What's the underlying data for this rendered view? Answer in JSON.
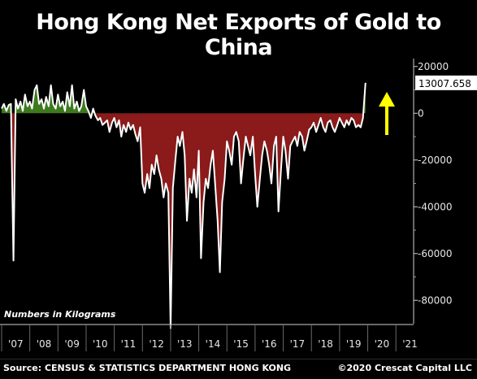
{
  "chart_data": {
    "type": "area",
    "title": "Hong Kong Net Exports of Gold to China",
    "note": "Numbers in Kilograms",
    "source": "Source: CENSUS & STATISTICS DEPARTMENT HONG KONG",
    "copyright": "©2020 Crescat Capital LLC",
    "last_value_label": "13007.658",
    "x_tick_labels": [
      "'07",
      "'08",
      "'09",
      "'10",
      "'11",
      "'12",
      "'13",
      "'14",
      "'15",
      "'16",
      "'17",
      "'18",
      "'19",
      "'20",
      "'21"
    ],
    "y_tick_labels": [
      "20000",
      "0",
      "-20000",
      "-40000",
      "-60000",
      "-80000"
    ],
    "yticks": [
      20000,
      0,
      -20000,
      -40000,
      -60000,
      -80000
    ],
    "ylim": [
      -90000,
      22000
    ],
    "xlim": [
      2007.0,
      2021.6
    ],
    "grid": false,
    "colors": {
      "positive_fill": "#3d7a1e",
      "negative_fill": "#8b1a1a",
      "line": "#ffffff",
      "arrow": "#ffff00",
      "background": "#000000"
    },
    "series": [
      {
        "values": [
          [
            2007.0,
            2000
          ],
          [
            2007.08,
            4000
          ],
          [
            2007.17,
            1000
          ],
          [
            2007.25,
            3500
          ],
          [
            2007.33,
            4000
          ],
          [
            2007.42,
            -63000
          ],
          [
            2007.5,
            6000
          ],
          [
            2007.58,
            2000
          ],
          [
            2007.67,
            5000
          ],
          [
            2007.75,
            1000
          ],
          [
            2007.83,
            8000
          ],
          [
            2007.92,
            3000
          ],
          [
            2008.0,
            5000
          ],
          [
            2008.08,
            2000
          ],
          [
            2008.17,
            10000
          ],
          [
            2008.25,
            12000
          ],
          [
            2008.33,
            4000
          ],
          [
            2008.42,
            6000
          ],
          [
            2008.5,
            2000
          ],
          [
            2008.58,
            7000
          ],
          [
            2008.67,
            3000
          ],
          [
            2008.75,
            12000
          ],
          [
            2008.83,
            4000
          ],
          [
            2008.92,
            2000
          ],
          [
            2009.0,
            8000
          ],
          [
            2009.08,
            3000
          ],
          [
            2009.17,
            5000
          ],
          [
            2009.25,
            1000
          ],
          [
            2009.33,
            9000
          ],
          [
            2009.42,
            3000
          ],
          [
            2009.5,
            12000
          ],
          [
            2009.58,
            2000
          ],
          [
            2009.67,
            5000
          ],
          [
            2009.75,
            1000
          ],
          [
            2009.83,
            3000
          ],
          [
            2009.92,
            10000
          ],
          [
            2010.0,
            3000
          ],
          [
            2010.08,
            1000
          ],
          [
            2010.17,
            -2000
          ],
          [
            2010.25,
            2000
          ],
          [
            2010.33,
            -1000
          ],
          [
            2010.42,
            -3000
          ],
          [
            2010.5,
            -2000
          ],
          [
            2010.58,
            -5000
          ],
          [
            2010.67,
            -4000
          ],
          [
            2010.75,
            -3000
          ],
          [
            2010.83,
            -8000
          ],
          [
            2010.92,
            -4000
          ],
          [
            2011.0,
            -2000
          ],
          [
            2011.08,
            -6000
          ],
          [
            2011.17,
            -3000
          ],
          [
            2011.25,
            -10000
          ],
          [
            2011.33,
            -5000
          ],
          [
            2011.42,
            -8000
          ],
          [
            2011.5,
            -4000
          ],
          [
            2011.58,
            -7000
          ],
          [
            2011.67,
            -5000
          ],
          [
            2011.75,
            -9000
          ],
          [
            2011.83,
            -12000
          ],
          [
            2011.92,
            -6000
          ],
          [
            2012.0,
            -30000
          ],
          [
            2012.08,
            -34000
          ],
          [
            2012.17,
            -26000
          ],
          [
            2012.25,
            -32000
          ],
          [
            2012.33,
            -22000
          ],
          [
            2012.42,
            -26000
          ],
          [
            2012.5,
            -18000
          ],
          [
            2012.58,
            -24000
          ],
          [
            2012.67,
            -28000
          ],
          [
            2012.75,
            -36000
          ],
          [
            2012.83,
            -30000
          ],
          [
            2012.92,
            -34000
          ],
          [
            2013.0,
            -92000
          ],
          [
            2013.08,
            -32000
          ],
          [
            2013.17,
            -20000
          ],
          [
            2013.25,
            -10000
          ],
          [
            2013.33,
            -14000
          ],
          [
            2013.42,
            -8000
          ],
          [
            2013.5,
            -18000
          ],
          [
            2013.58,
            -46000
          ],
          [
            2013.67,
            -28000
          ],
          [
            2013.75,
            -34000
          ],
          [
            2013.83,
            -24000
          ],
          [
            2013.92,
            -36000
          ],
          [
            2014.0,
            -16000
          ],
          [
            2014.08,
            -62000
          ],
          [
            2014.17,
            -38000
          ],
          [
            2014.25,
            -28000
          ],
          [
            2014.33,
            -32000
          ],
          [
            2014.42,
            -22000
          ],
          [
            2014.5,
            -16000
          ],
          [
            2014.58,
            -30000
          ],
          [
            2014.67,
            -46000
          ],
          [
            2014.75,
            -68000
          ],
          [
            2014.83,
            -38000
          ],
          [
            2014.92,
            -28000
          ],
          [
            2015.0,
            -12000
          ],
          [
            2015.08,
            -16000
          ],
          [
            2015.17,
            -22000
          ],
          [
            2015.25,
            -10000
          ],
          [
            2015.33,
            -8000
          ],
          [
            2015.42,
            -12000
          ],
          [
            2015.5,
            -30000
          ],
          [
            2015.58,
            -20000
          ],
          [
            2015.67,
            -10000
          ],
          [
            2015.75,
            -14000
          ],
          [
            2015.83,
            -18000
          ],
          [
            2015.92,
            -10000
          ],
          [
            2016.0,
            -26000
          ],
          [
            2016.08,
            -40000
          ],
          [
            2016.17,
            -28000
          ],
          [
            2016.25,
            -18000
          ],
          [
            2016.33,
            -12000
          ],
          [
            2016.42,
            -16000
          ],
          [
            2016.5,
            -22000
          ],
          [
            2016.58,
            -30000
          ],
          [
            2016.67,
            -14000
          ],
          [
            2016.75,
            -10000
          ],
          [
            2016.83,
            -42000
          ],
          [
            2016.92,
            -24000
          ],
          [
            2017.0,
            -10000
          ],
          [
            2017.08,
            -16000
          ],
          [
            2017.17,
            -28000
          ],
          [
            2017.25,
            -14000
          ],
          [
            2017.33,
            -12000
          ],
          [
            2017.42,
            -10000
          ],
          [
            2017.5,
            -14000
          ],
          [
            2017.58,
            -8000
          ],
          [
            2017.67,
            -10000
          ],
          [
            2017.75,
            -16000
          ],
          [
            2017.83,
            -12000
          ],
          [
            2017.92,
            -7000
          ],
          [
            2018.0,
            -6000
          ],
          [
            2018.08,
            -4000
          ],
          [
            2018.17,
            -8000
          ],
          [
            2018.25,
            -5000
          ],
          [
            2018.33,
            -2000
          ],
          [
            2018.42,
            -6000
          ],
          [
            2018.5,
            -8000
          ],
          [
            2018.58,
            -4000
          ],
          [
            2018.67,
            -3000
          ],
          [
            2018.75,
            -6000
          ],
          [
            2018.83,
            -8000
          ],
          [
            2018.92,
            -5000
          ],
          [
            2019.0,
            -2000
          ],
          [
            2019.08,
            -4000
          ],
          [
            2019.17,
            -6000
          ],
          [
            2019.25,
            -3000
          ],
          [
            2019.33,
            -5000
          ],
          [
            2019.42,
            -2000
          ],
          [
            2019.5,
            -3000
          ],
          [
            2019.58,
            -6000
          ],
          [
            2019.67,
            -5000
          ],
          [
            2019.75,
            -6000
          ],
          [
            2019.83,
            -2000
          ],
          [
            2019.92,
            13007.658
          ]
        ]
      }
    ]
  }
}
